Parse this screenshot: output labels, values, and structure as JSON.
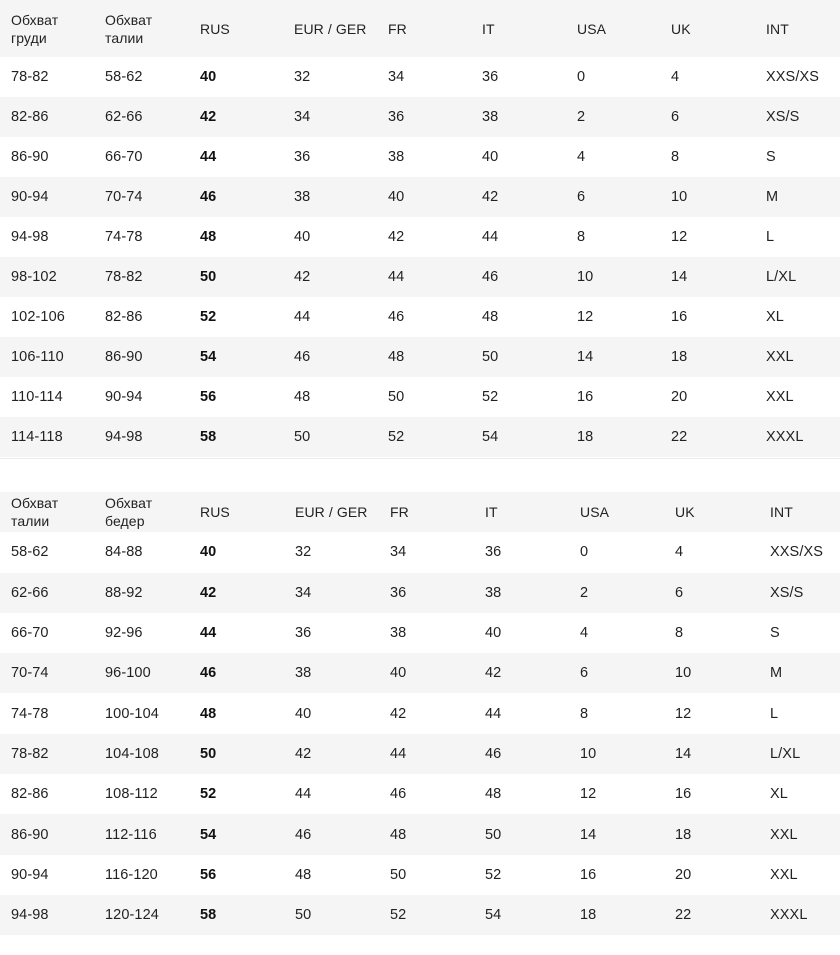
{
  "tables": [
    {
      "headers": [
        "Обхват\nгруди",
        "Обхват\nталии",
        "RUS",
        "EUR / GER",
        "FR",
        "IT",
        "USA",
        "UK",
        "INT"
      ],
      "rows": [
        [
          "78-82",
          "58-62",
          "40",
          "32",
          "34",
          "36",
          "0",
          "4",
          "XXS/XS"
        ],
        [
          "82-86",
          "62-66",
          "42",
          "34",
          "36",
          "38",
          "2",
          "6",
          "XS/S"
        ],
        [
          "86-90",
          "66-70",
          "44",
          "36",
          "38",
          "40",
          "4",
          "8",
          "S"
        ],
        [
          "90-94",
          "70-74",
          "46",
          "38",
          "40",
          "42",
          "6",
          "10",
          "M"
        ],
        [
          "94-98",
          "74-78",
          "48",
          "40",
          "42",
          "44",
          "8",
          "12",
          "L"
        ],
        [
          "98-102",
          "78-82",
          "50",
          "42",
          "44",
          "46",
          "10",
          "14",
          "L/XL"
        ],
        [
          "102-106",
          "82-86",
          "52",
          "44",
          "46",
          "48",
          "12",
          "16",
          "XL"
        ],
        [
          "106-110",
          "86-90",
          "54",
          "46",
          "48",
          "50",
          "14",
          "18",
          "XXL"
        ],
        [
          "110-114",
          "90-94",
          "56",
          "48",
          "50",
          "52",
          "16",
          "20",
          "XXL"
        ],
        [
          "114-118",
          "94-98",
          "58",
          "50",
          "52",
          "54",
          "18",
          "22",
          "XXXL"
        ]
      ]
    },
    {
      "headers": [
        "Обхват\nталии",
        "Обхват\nбедер",
        "RUS",
        "EUR / GER",
        "FR",
        "IT",
        "USA",
        "UK",
        "INT"
      ],
      "rows": [
        [
          "58-62",
          "84-88",
          "40",
          "32",
          "34",
          "36",
          "0",
          "4",
          "XXS/XS"
        ],
        [
          "62-66",
          "88-92",
          "42",
          "34",
          "36",
          "38",
          "2",
          "6",
          "XS/S"
        ],
        [
          "66-70",
          "92-96",
          "44",
          "36",
          "38",
          "40",
          "4",
          "8",
          "S"
        ],
        [
          "70-74",
          "96-100",
          "46",
          "38",
          "40",
          "42",
          "6",
          "10",
          "M"
        ],
        [
          "74-78",
          "100-104",
          "48",
          "40",
          "42",
          "44",
          "8",
          "12",
          "L"
        ],
        [
          "78-82",
          "104-108",
          "50",
          "42",
          "44",
          "46",
          "10",
          "14",
          "L/XL"
        ],
        [
          "82-86",
          "108-112",
          "52",
          "44",
          "46",
          "48",
          "12",
          "16",
          "XL"
        ],
        [
          "86-90",
          "112-116",
          "54",
          "46",
          "48",
          "50",
          "14",
          "18",
          "XXL"
        ],
        [
          "90-94",
          "116-120",
          "56",
          "48",
          "50",
          "52",
          "16",
          "20",
          "XXL"
        ],
        [
          "94-98",
          "120-124",
          "58",
          "50",
          "52",
          "54",
          "18",
          "22",
          "XXXL"
        ]
      ]
    }
  ]
}
